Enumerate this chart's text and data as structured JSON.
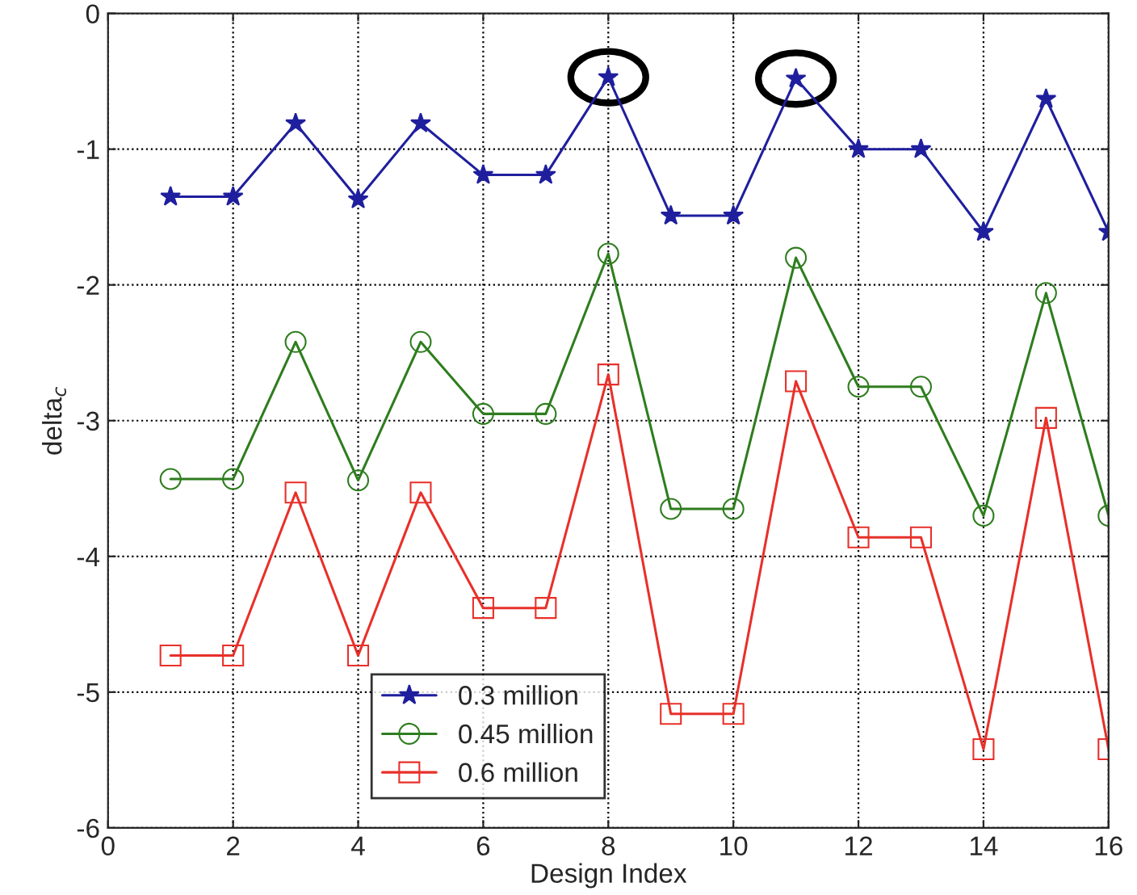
{
  "chart_data": {
    "type": "line",
    "xlabel": "Design Index",
    "ylabel": "delta$_{c}$",
    "x": [
      1,
      2,
      3,
      4,
      5,
      6,
      7,
      8,
      9,
      10,
      11,
      12,
      13,
      14,
      15,
      16
    ],
    "series": [
      {
        "name": "0.3 million",
        "color": "#1f1f9e",
        "marker": "star",
        "values": [
          -1.35,
          -1.35,
          -0.81,
          -1.37,
          -0.81,
          -1.19,
          -1.19,
          -0.47,
          -1.49,
          -1.49,
          -0.48,
          -1.0,
          -1.0,
          -1.61,
          -0.63,
          -1.61
        ]
      },
      {
        "name": "0.45 million",
        "color": "#2e7d1e",
        "marker": "circle",
        "values": [
          -3.43,
          -3.43,
          -2.42,
          -3.44,
          -2.42,
          -2.95,
          -2.95,
          -1.77,
          -3.65,
          -3.65,
          -1.8,
          -2.75,
          -2.75,
          -3.7,
          -2.06,
          -3.7
        ]
      },
      {
        "name": "0.6 million",
        "color": "#e8302a",
        "marker": "square",
        "values": [
          -4.73,
          -4.73,
          -3.53,
          -4.73,
          -3.53,
          -4.38,
          -4.38,
          -2.66,
          -5.16,
          -5.16,
          -2.71,
          -3.86,
          -3.86,
          -5.42,
          -2.98,
          -5.42
        ]
      }
    ],
    "xlim": [
      0,
      16
    ],
    "xticks": [
      0,
      2,
      4,
      6,
      8,
      10,
      12,
      14,
      16
    ],
    "ylim": [
      -6,
      0
    ],
    "yticks": [
      -6,
      -5,
      -4,
      -3,
      -2,
      -1,
      0
    ],
    "grid": true,
    "legend": "bottom left",
    "line_style": "solid"
  }
}
